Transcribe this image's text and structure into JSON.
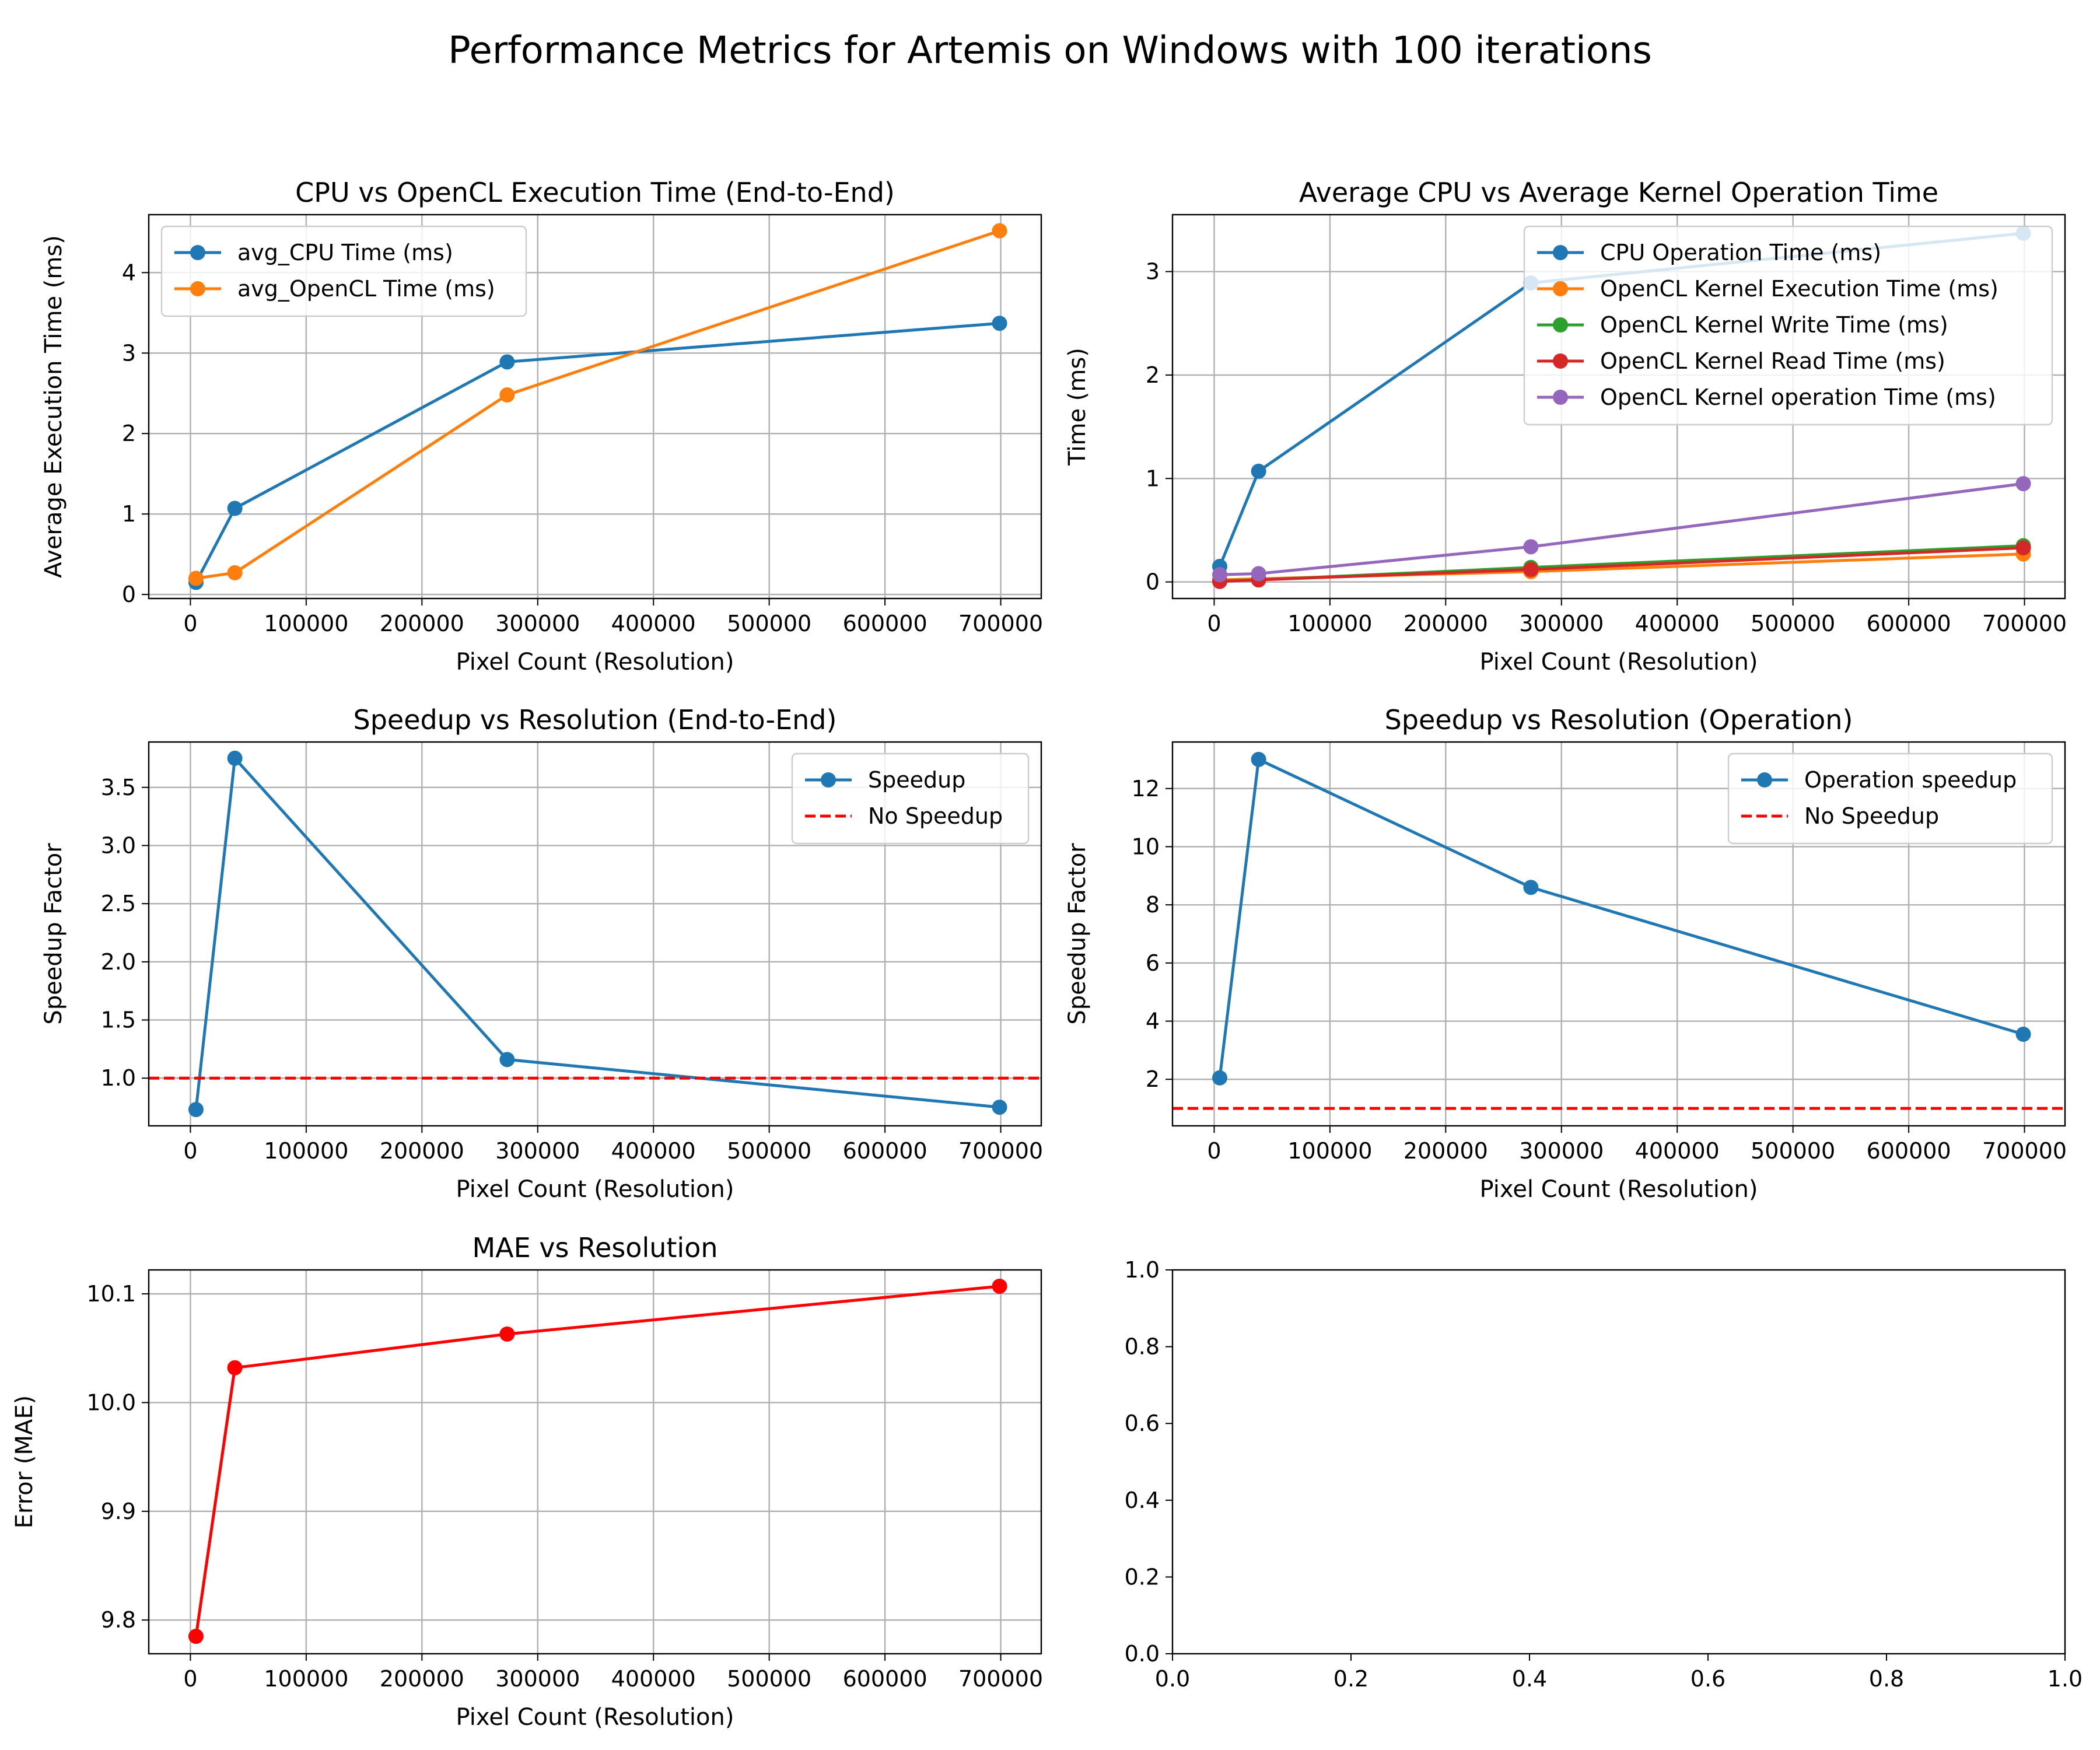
{
  "figure_title": "Performance Metrics for Artemis on Windows with 100 iterations",
  "chart_data": [
    {
      "type": "line",
      "title": "CPU vs OpenCL Execution Time (End-to-End)",
      "xlabel": "Pixel Count (Resolution)",
      "ylabel": "Average Execution Time (ms)",
      "xlim": [
        -36000,
        735000
      ],
      "ylim": [
        -0.05,
        4.72
      ],
      "xticks": [
        0,
        100000,
        200000,
        300000,
        400000,
        500000,
        600000,
        700000
      ],
      "yticks": [
        0,
        1,
        2,
        3,
        4
      ],
      "grid": true,
      "legend_loc": "top-left",
      "x": [
        4800,
        38400,
        273600,
        699000
      ],
      "series": [
        {
          "name": "avg_CPU Time (ms)",
          "values": [
            0.15,
            1.07,
            2.89,
            3.37
          ],
          "color": "#1f77b4",
          "style": "solid",
          "marker": true
        },
        {
          "name": "avg_OpenCL Time (ms)",
          "values": [
            0.2,
            0.27,
            2.48,
            4.52
          ],
          "color": "#ff7f0e",
          "style": "solid",
          "marker": true
        }
      ]
    },
    {
      "type": "line",
      "title": "Average CPU vs Average Kernel Operation Time",
      "xlabel": "Pixel Count (Resolution)",
      "ylabel": "Time (ms)",
      "xlim": [
        -36000,
        735000
      ],
      "ylim": [
        -0.16,
        3.55
      ],
      "xticks": [
        0,
        100000,
        200000,
        300000,
        400000,
        500000,
        600000,
        700000
      ],
      "yticks": [
        0,
        1,
        2,
        3
      ],
      "grid": true,
      "legend_loc": "top-right",
      "x": [
        4800,
        38400,
        273600,
        699000
      ],
      "series": [
        {
          "name": "CPU Operation Time (ms)",
          "values": [
            0.15,
            1.07,
            2.89,
            3.37
          ],
          "color": "#1f77b4",
          "style": "solid",
          "marker": true
        },
        {
          "name": "OpenCL Kernel Execution Time (ms)",
          "values": [
            0.02,
            0.03,
            0.1,
            0.27
          ],
          "color": "#ff7f0e",
          "style": "solid",
          "marker": true
        },
        {
          "name": "OpenCL Kernel Write Time (ms)",
          "values": [
            0.01,
            0.02,
            0.14,
            0.35
          ],
          "color": "#2ca02c",
          "style": "solid",
          "marker": true
        },
        {
          "name": "OpenCL Kernel Read Time (ms)",
          "values": [
            0.005,
            0.02,
            0.12,
            0.33
          ],
          "color": "#d62728",
          "style": "solid",
          "marker": true
        },
        {
          "name": "OpenCL Kernel operation Time (ms)",
          "values": [
            0.07,
            0.08,
            0.34,
            0.95
          ],
          "color": "#9467bd",
          "style": "solid",
          "marker": true
        }
      ]
    },
    {
      "type": "line",
      "title": "Speedup vs Resolution (End-to-End)",
      "xlabel": "Pixel Count (Resolution)",
      "ylabel": "Speedup Factor",
      "xlim": [
        -36000,
        735000
      ],
      "ylim": [
        0.59,
        3.89
      ],
      "xticks": [
        0,
        100000,
        200000,
        300000,
        400000,
        500000,
        600000,
        700000
      ],
      "yticks": [
        1.0,
        1.5,
        2.0,
        2.5,
        3.0,
        3.5
      ],
      "ytick_format": "1dp",
      "grid": true,
      "legend_loc": "top-right",
      "x": [
        4800,
        38400,
        273600,
        699000
      ],
      "series": [
        {
          "name": "Speedup",
          "values": [
            0.73,
            3.75,
            1.16,
            0.75
          ],
          "color": "#1f77b4",
          "style": "solid",
          "marker": true
        },
        {
          "name": "No Speedup",
          "hline": 1.0,
          "color": "#ff0000",
          "style": "dashed",
          "marker": false
        }
      ]
    },
    {
      "type": "line",
      "title": "Speedup vs Resolution (Operation)",
      "xlabel": "Pixel Count (Resolution)",
      "ylabel": "Speedup Factor",
      "xlim": [
        -36000,
        735000
      ],
      "ylim": [
        0.4,
        13.6
      ],
      "xticks": [
        0,
        100000,
        200000,
        300000,
        400000,
        500000,
        600000,
        700000
      ],
      "yticks": [
        2,
        4,
        6,
        8,
        10,
        12
      ],
      "grid": true,
      "legend_loc": "top-right",
      "x": [
        4800,
        38400,
        273600,
        699000
      ],
      "series": [
        {
          "name": "Operation speedup",
          "values": [
            2.05,
            13.0,
            8.6,
            3.55
          ],
          "color": "#1f77b4",
          "style": "solid",
          "marker": true
        },
        {
          "name": "No Speedup",
          "hline": 1.0,
          "color": "#ff0000",
          "style": "dashed",
          "marker": false
        }
      ]
    },
    {
      "type": "line",
      "title": "MAE vs Resolution",
      "xlabel": "Pixel Count (Resolution)",
      "ylabel": "Error (MAE)",
      "xlim": [
        -36000,
        735000
      ],
      "ylim": [
        9.769,
        10.122
      ],
      "xticks": [
        0,
        100000,
        200000,
        300000,
        400000,
        500000,
        600000,
        700000
      ],
      "yticks": [
        9.8,
        9.9,
        10.0,
        10.1
      ],
      "ytick_format": "1dp",
      "grid": true,
      "legend_loc": "none",
      "x": [
        4800,
        38400,
        273600,
        699000
      ],
      "series": [
        {
          "name": "MAE",
          "values": [
            9.785,
            10.032,
            10.063,
            10.107
          ],
          "color": "#ff0000",
          "style": "solid",
          "marker": true
        }
      ]
    },
    {
      "type": "line",
      "title": "",
      "xlabel": "",
      "ylabel": "",
      "xlim": [
        0,
        1
      ],
      "ylim": [
        0,
        1
      ],
      "xticks": [
        0.0,
        0.2,
        0.4,
        0.6,
        0.8,
        1.0
      ],
      "yticks": [
        0.0,
        0.2,
        0.4,
        0.6,
        0.8,
        1.0
      ],
      "xtick_format": "1dp",
      "ytick_format": "1dp",
      "grid": false,
      "legend_loc": "none",
      "x": [],
      "series": []
    }
  ]
}
